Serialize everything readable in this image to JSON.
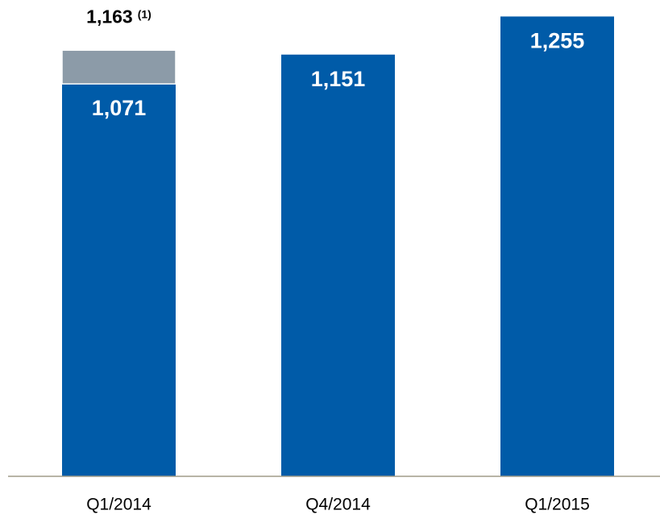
{
  "chart_data": {
    "type": "bar",
    "categories": [
      "Q1/2014",
      "Q4/2014",
      "Q1/2015"
    ],
    "series": [
      {
        "color": "#005ba8",
        "values": [
          1071,
          1151,
          1255
        ],
        "value_labels": [
          "1,071",
          "1,151",
          "1,255"
        ]
      },
      {
        "color": "#8c9ba8",
        "values": [
          92,
          null,
          null
        ]
      }
    ],
    "totals": [
      1163,
      null,
      null
    ],
    "total_labels": [
      "1,163",
      null,
      null
    ],
    "total_note": "(1)",
    "ylim": [
      0,
      1300
    ],
    "stacked": true,
    "axis_color": "#a19b88"
  }
}
